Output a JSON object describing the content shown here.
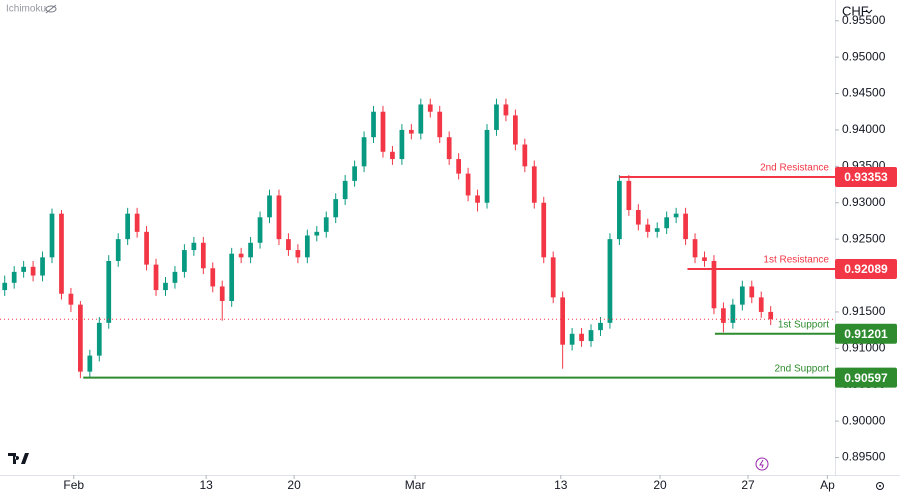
{
  "chart_data": {
    "type": "candlestick",
    "indicator": "Ichimoku",
    "currency": "CHF",
    "up_color": "#089981",
    "down_color": "#f23645",
    "xlim": [
      -0.5,
      87.8
    ],
    "ylim": [
      0.8926,
      0.95785
    ],
    "xticks": [
      {
        "value": 7.3,
        "label": "Feb"
      },
      {
        "value": 21.3,
        "label": "13"
      },
      {
        "value": 30.6,
        "label": "20"
      },
      {
        "value": 43.4,
        "label": "Mar"
      },
      {
        "value": 58.8,
        "label": "13"
      },
      {
        "value": 69.3,
        "label": "20"
      },
      {
        "value": 78.6,
        "label": "27"
      },
      {
        "value": 87,
        "label": "Ap"
      }
    ],
    "yticks": [
      {
        "value": 0.895,
        "label": "0.89500"
      },
      {
        "value": 0.9,
        "label": "0.90000"
      },
      {
        "value": 0.905,
        "label": "0.90500"
      },
      {
        "value": 0.91,
        "label": "0.91000"
      },
      {
        "value": 0.915,
        "label": "0.91500"
      },
      {
        "value": 0.92,
        "label": "0.92000"
      },
      {
        "value": 0.925,
        "label": "0.92500"
      },
      {
        "value": 0.93,
        "label": "0.93000"
      },
      {
        "value": 0.935,
        "label": "0.93500"
      },
      {
        "value": 0.94,
        "label": "0.94000"
      },
      {
        "value": 0.945,
        "label": "0.94500"
      },
      {
        "value": 0.95,
        "label": "0.95000"
      },
      {
        "value": 0.955,
        "label": "0.95500"
      }
    ],
    "open": [
      0.918,
      0.919,
      0.9205,
      0.9212,
      0.92,
      0.9225,
      0.9285,
      0.9175,
      0.916,
      0.9068,
      0.909,
      0.9135,
      0.922,
      0.925,
      0.9285,
      0.926,
      0.9215,
      0.918,
      0.919,
      0.9205,
      0.9235,
      0.9245,
      0.921,
      0.9185,
      0.9165,
      0.923,
      0.9225,
      0.9245,
      0.928,
      0.931,
      0.925,
      0.9235,
      0.9225,
      0.9255,
      0.926,
      0.928,
      0.9305,
      0.933,
      0.935,
      0.939,
      0.9425,
      0.937,
      0.936,
      0.94,
      0.9395,
      0.9435,
      0.9425,
      0.939,
      0.936,
      0.934,
      0.931,
      0.93,
      0.94,
      0.9435,
      0.942,
      0.938,
      0.935,
      0.93,
      0.9225,
      0.917,
      0.9105,
      0.912,
      0.911,
      0.9125,
      0.9135,
      0.925,
      0.933,
      0.929,
      0.927,
      0.926,
      0.9265,
      0.928,
      0.9285,
      0.925,
      0.9225,
      0.922,
      0.9155,
      0.9135,
      0.916,
      0.9185,
      0.917,
      0.915
    ],
    "high": [
      0.92,
      0.9213,
      0.922,
      0.922,
      0.9233,
      0.9292,
      0.929,
      0.9183,
      0.9165,
      0.9098,
      0.9143,
      0.9228,
      0.9258,
      0.9293,
      0.9293,
      0.9268,
      0.9223,
      0.9198,
      0.9213,
      0.9243,
      0.9253,
      0.9253,
      0.9218,
      0.9193,
      0.9238,
      0.9238,
      0.9253,
      0.9288,
      0.9318,
      0.9318,
      0.9258,
      0.9243,
      0.9263,
      0.9268,
      0.9288,
      0.9313,
      0.9338,
      0.9358,
      0.9398,
      0.9433,
      0.9433,
      0.9378,
      0.9408,
      0.9408,
      0.9443,
      0.9443,
      0.9433,
      0.9398,
      0.9368,
      0.9348,
      0.9318,
      0.9408,
      0.9443,
      0.9443,
      0.9428,
      0.9388,
      0.9358,
      0.9308,
      0.9233,
      0.9178,
      0.9128,
      0.9128,
      0.9133,
      0.9143,
      0.9258,
      0.9338,
      0.9338,
      0.9298,
      0.9278,
      0.9273,
      0.9288,
      0.9293,
      0.9293,
      0.9258,
      0.9233,
      0.9228,
      0.9163,
      0.9168,
      0.9193,
      0.9193,
      0.9178,
      0.9158
    ],
    "low": [
      0.9172,
      0.9182,
      0.9197,
      0.9192,
      0.9192,
      0.9217,
      0.9167,
      0.915,
      0.9059,
      0.906,
      0.9082,
      0.9127,
      0.9212,
      0.9242,
      0.9252,
      0.9207,
      0.9172,
      0.9172,
      0.9182,
      0.9197,
      0.9227,
      0.9202,
      0.9177,
      0.9138,
      0.9157,
      0.9217,
      0.9217,
      0.9237,
      0.9272,
      0.9242,
      0.9227,
      0.9217,
      0.9217,
      0.9247,
      0.9252,
      0.9272,
      0.9297,
      0.9322,
      0.9342,
      0.9382,
      0.9362,
      0.9352,
      0.9352,
      0.9387,
      0.9387,
      0.9417,
      0.9382,
      0.9352,
      0.9332,
      0.9302,
      0.9288,
      0.9292,
      0.9392,
      0.9412,
      0.9372,
      0.9342,
      0.9292,
      0.9217,
      0.9162,
      0.9072,
      0.9097,
      0.9102,
      0.9102,
      0.9117,
      0.9127,
      0.9242,
      0.9282,
      0.9262,
      0.9252,
      0.9252,
      0.9257,
      0.9272,
      0.9242,
      0.9217,
      0.9212,
      0.9147,
      0.9122,
      0.9127,
      0.9152,
      0.9162,
      0.9142,
      0.9132
    ],
    "close": [
      0.919,
      0.9205,
      0.9212,
      0.92,
      0.9225,
      0.9285,
      0.9175,
      0.916,
      0.9068,
      0.909,
      0.9135,
      0.922,
      0.925,
      0.9285,
      0.926,
      0.9215,
      0.918,
      0.919,
      0.9205,
      0.9235,
      0.9245,
      0.921,
      0.9185,
      0.9165,
      0.923,
      0.9225,
      0.9245,
      0.928,
      0.931,
      0.925,
      0.9235,
      0.9225,
      0.9255,
      0.926,
      0.928,
      0.9305,
      0.933,
      0.935,
      0.939,
      0.9425,
      0.937,
      0.936,
      0.94,
      0.9395,
      0.9435,
      0.9425,
      0.939,
      0.936,
      0.934,
      0.931,
      0.93,
      0.94,
      0.9435,
      0.942,
      0.938,
      0.935,
      0.93,
      0.9225,
      0.917,
      0.9105,
      0.912,
      0.911,
      0.9125,
      0.9135,
      0.925,
      0.933,
      0.929,
      0.927,
      0.926,
      0.9265,
      0.928,
      0.9285,
      0.925,
      0.9225,
      0.922,
      0.9155,
      0.9135,
      0.916,
      0.9185,
      0.917,
      0.915,
      0.914
    ],
    "levels": [
      {
        "name": "2nd Resistance",
        "value": 0.93353,
        "label": "0.93353",
        "color": "#f23645",
        "from_x": 65
      },
      {
        "name": "1st Resistance",
        "value": 0.92089,
        "label": "0.92089",
        "color": "#f23645",
        "from_x": 72.2
      },
      {
        "name": "1st Support",
        "value": 0.91201,
        "label": "0.91201",
        "color": "#2e8b2e",
        "from_x": 75.1
      },
      {
        "name": "2nd Support",
        "value": 0.90597,
        "label": "0.90597",
        "color": "#2e8b2e",
        "from_x": 8.3
      }
    ]
  }
}
